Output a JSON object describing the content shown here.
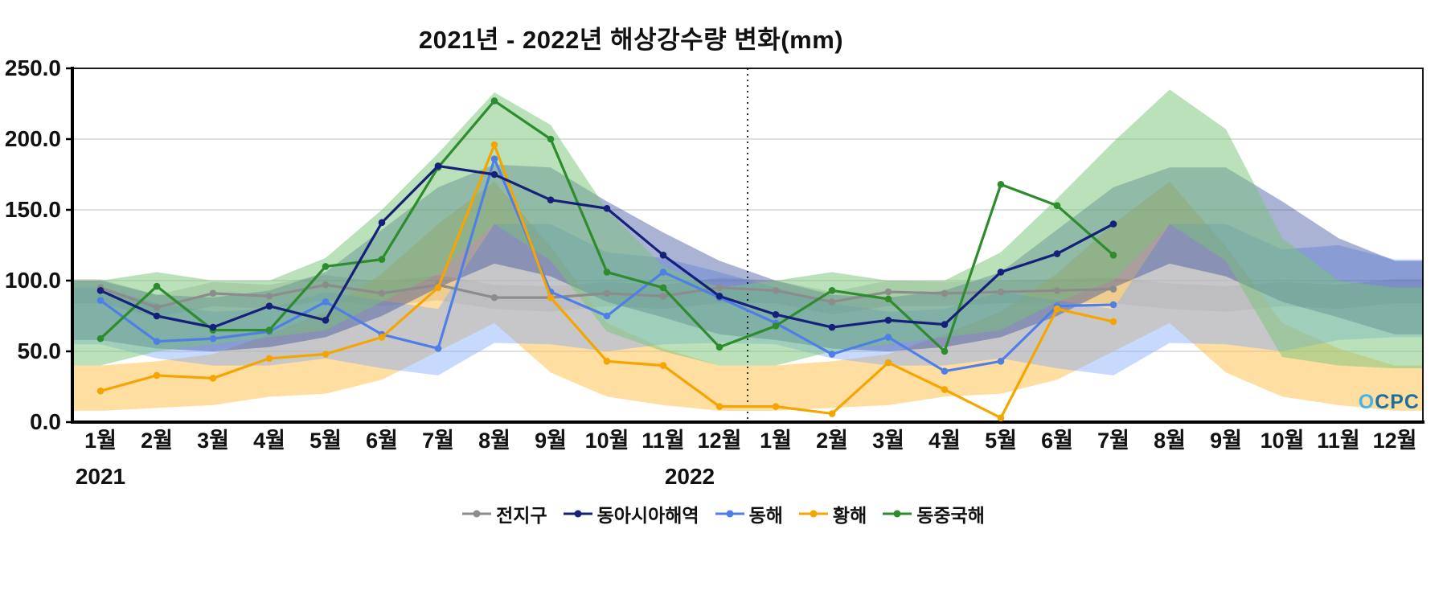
{
  "chart_data": {
    "type": "line",
    "title": "2021년 - 2022년 해상강수량 변화(mm)",
    "unit": "mm",
    "ylim": [
      0,
      250
    ],
    "ytick_step": 50,
    "ytick_decimals": 1,
    "grid": true,
    "legend_position": "bottom",
    "separator_index": 12,
    "categories": [
      "1월",
      "2월",
      "3월",
      "4월",
      "5월",
      "6월",
      "7월",
      "8월",
      "9월",
      "10월",
      "11월",
      "12월",
      "1월",
      "2월",
      "3월",
      "4월",
      "5월",
      "6월",
      "7월",
      "8월",
      "9월",
      "10월",
      "11월",
      "12월"
    ],
    "year_groups": [
      {
        "label": "2021",
        "start_index": 0
      },
      {
        "label": "2022",
        "start_index": 12
      }
    ],
    "series": [
      {
        "name": "전지구",
        "color": "#8c8c8c",
        "band_color": "rgba(140,140,140,0.33)",
        "values": [
          95,
          81,
          91,
          89,
          97,
          91,
          97,
          88,
          88,
          91,
          89,
          95,
          93,
          85,
          92,
          91,
          92,
          93,
          94
        ],
        "band_lower": [
          84,
          74,
          82,
          80,
          86,
          82,
          86,
          80,
          78,
          82,
          80,
          84,
          84,
          76,
          82,
          82,
          84,
          84,
          84,
          80,
          78,
          82,
          80,
          84
        ],
        "band_upper": [
          101,
          90,
          99,
          97,
          104,
          99,
          104,
          97,
          96,
          99,
          97,
          102,
          100,
          92,
          100,
          99,
          100,
          101,
          102,
          98,
          96,
          99,
          97,
          101
        ]
      },
      {
        "name": "동아시아해역",
        "color": "#15207a",
        "band_color": "rgba(45,65,150,0.40)",
        "values": [
          93,
          75,
          67,
          82,
          72,
          141,
          181,
          175,
          157,
          151,
          118,
          89,
          76,
          67,
          72,
          69,
          106,
          119,
          140
        ],
        "band_lower": [
          58,
          52,
          50,
          53,
          60,
          75,
          95,
          112,
          103,
          85,
          74,
          62,
          58,
          52,
          50,
          53,
          60,
          75,
          95,
          112,
          103,
          85,
          74,
          62
        ],
        "band_upper": [
          100,
          90,
          88,
          93,
          106,
          136,
          166,
          182,
          180,
          156,
          134,
          114,
          100,
          90,
          88,
          93,
          106,
          136,
          166,
          180,
          180,
          156,
          130,
          114
        ]
      },
      {
        "name": "동해",
        "color": "#4f7fe6",
        "band_color": "rgba(130,170,250,0.45)",
        "values": [
          86,
          57,
          59,
          64,
          85,
          62,
          52,
          186,
          92,
          75,
          106,
          88,
          70,
          48,
          60,
          36,
          43,
          82,
          83
        ],
        "band_lower": [
          55,
          45,
          40,
          40,
          45,
          38,
          33,
          56,
          55,
          50,
          55,
          56,
          55,
          45,
          40,
          40,
          45,
          38,
          33,
          56,
          55,
          50,
          58,
          60
        ],
        "band_upper": [
          95,
          84,
          78,
          80,
          92,
          86,
          80,
          140,
          140,
          120,
          116,
          106,
          95,
          84,
          78,
          80,
          92,
          86,
          80,
          140,
          140,
          122,
          125,
          115
        ]
      },
      {
        "name": "황해",
        "color": "#f5a500",
        "band_color": "rgba(255,195,85,0.55)",
        "values": [
          22,
          33,
          31,
          45,
          48,
          60,
          95,
          196,
          88,
          43,
          40,
          11,
          11,
          6,
          42,
          23,
          3,
          80,
          71
        ],
        "band_lower": [
          8,
          10,
          12,
          18,
          20,
          30,
          50,
          70,
          35,
          18,
          12,
          8,
          8,
          10,
          12,
          18,
          20,
          30,
          50,
          70,
          35,
          18,
          12,
          8
        ],
        "band_upper": [
          40,
          43,
          48,
          62,
          78,
          105,
          140,
          170,
          124,
          70,
          52,
          40,
          40,
          43,
          48,
          62,
          78,
          105,
          140,
          170,
          124,
          70,
          52,
          40
        ]
      },
      {
        "name": "동중국해",
        "color": "#2e8b2e",
        "band_color": "rgba(120,195,120,0.50)",
        "values": [
          59,
          96,
          65,
          65,
          110,
          115,
          180,
          227,
          200,
          106,
          95,
          53,
          68,
          93,
          87,
          50,
          168,
          153,
          118
        ],
        "band_lower": [
          40,
          50,
          55,
          60,
          65,
          85,
          105,
          140,
          114,
          64,
          50,
          40,
          40,
          50,
          55,
          60,
          65,
          85,
          100,
          140,
          114,
          46,
          40,
          38
        ],
        "band_upper": [
          100,
          106,
          100,
          100,
          116,
          150,
          190,
          233,
          210,
          150,
          110,
          95,
          100,
          106,
          100,
          100,
          120,
          158,
          198,
          235,
          207,
          130,
          100,
          95
        ]
      }
    ]
  },
  "logo": {
    "text": "OCPC"
  }
}
